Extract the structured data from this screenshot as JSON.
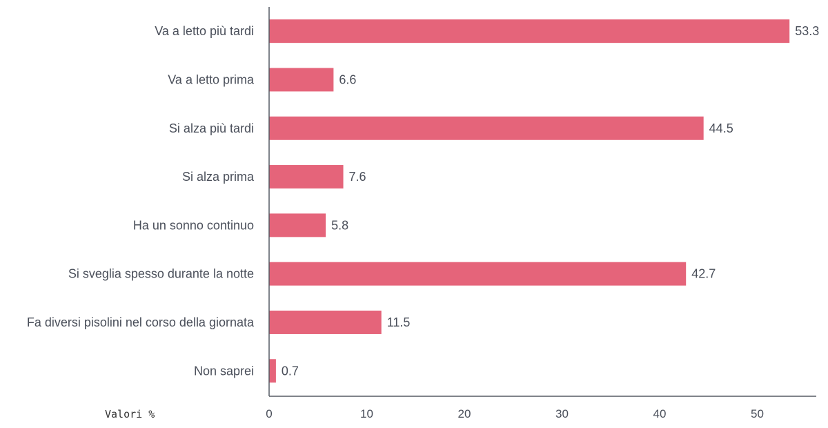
{
  "chart_data": {
    "type": "bar",
    "orientation": "horizontal",
    "categories": [
      "Va a letto più tardi",
      "Va a letto prima",
      "Si alza più tardi",
      "Si alza prima",
      "Ha un sonno continuo",
      "Si sveglia spesso durante la notte",
      "Fa diversi pisolini nel corso della giornata",
      "Non saprei"
    ],
    "values": [
      53.3,
      6.6,
      44.5,
      7.6,
      5.8,
      42.7,
      11.5,
      0.7
    ],
    "value_labels": [
      "53.3",
      "6.6",
      "44.5",
      "7.6",
      "5.8",
      "42.7",
      "11.5",
      "0.7"
    ],
    "xticks": [
      0,
      10,
      20,
      30,
      40,
      50
    ],
    "xlim": [
      0,
      56
    ],
    "xlabel": "Valori %",
    "grid": false,
    "colors": {
      "bar": "#e5647a",
      "axis": "#555a63",
      "text": "#4a4f5a"
    }
  }
}
